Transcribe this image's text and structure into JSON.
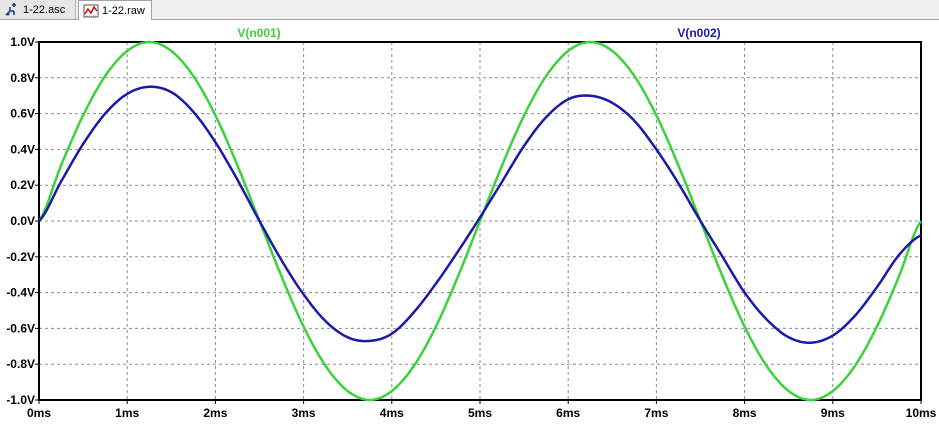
{
  "tabs": [
    {
      "label": "1-22.asc",
      "icon": "schematic-icon"
    },
    {
      "label": "1-22.raw",
      "icon": "waveform-icon"
    }
  ],
  "chart_data": {
    "type": "line",
    "xlim": [
      0,
      10
    ],
    "ylim": [
      -1.0,
      1.0
    ],
    "x_tick_labels": [
      "0ms",
      "1ms",
      "2ms",
      "3ms",
      "4ms",
      "5ms",
      "6ms",
      "7ms",
      "8ms",
      "9ms",
      "10ms"
    ],
    "y_tick_labels": [
      "1.0V",
      "0.8V",
      "0.6V",
      "0.4V",
      "0.2V",
      "0.0V",
      "-0.2V",
      "-0.4V",
      "-0.6V",
      "-0.8V",
      "-1.0V"
    ],
    "x_ticks": [
      0,
      1,
      2,
      3,
      4,
      5,
      6,
      7,
      8,
      9,
      10
    ],
    "y_ticks": [
      1.0,
      0.8,
      0.6,
      0.4,
      0.2,
      0.0,
      -0.2,
      -0.4,
      -0.6,
      -0.8,
      -1.0
    ],
    "grid": true,
    "series": [
      {
        "name": "V(n001)",
        "color": "#3cd23c",
        "x": [
          0,
          0.25,
          0.5,
          0.75,
          1.0,
          1.25,
          1.5,
          1.75,
          2.0,
          2.25,
          2.5,
          2.75,
          3.0,
          3.25,
          3.5,
          3.75,
          4.0,
          4.25,
          4.5,
          4.75,
          5.0,
          5.25,
          5.5,
          5.75,
          6.0,
          6.25,
          6.5,
          6.75,
          7.0,
          7.25,
          7.5,
          7.75,
          8.0,
          8.25,
          8.5,
          8.75,
          9.0,
          9.25,
          9.5,
          9.75,
          10.0
        ],
        "values": [
          0.0,
          0.31,
          0.59,
          0.81,
          0.95,
          1.0,
          0.95,
          0.81,
          0.59,
          0.31,
          0.0,
          -0.31,
          -0.59,
          -0.81,
          -0.95,
          -1.0,
          -0.95,
          -0.81,
          -0.59,
          -0.31,
          0.0,
          0.31,
          0.59,
          0.81,
          0.95,
          1.0,
          0.95,
          0.81,
          0.59,
          0.31,
          0.0,
          -0.31,
          -0.59,
          -0.81,
          -0.95,
          -1.0,
          -0.95,
          -0.81,
          -0.59,
          -0.31,
          0.0
        ]
      },
      {
        "name": "V(n002)",
        "color": "#1a1aa8",
        "x": [
          0,
          0.25,
          0.5,
          0.75,
          1.0,
          1.25,
          1.5,
          1.75,
          2.0,
          2.25,
          2.5,
          2.75,
          3.0,
          3.25,
          3.5,
          3.75,
          4.0,
          4.25,
          4.5,
          4.75,
          5.0,
          5.25,
          5.5,
          5.75,
          6.0,
          6.25,
          6.5,
          6.75,
          7.0,
          7.25,
          7.5,
          7.75,
          8.0,
          8.25,
          8.5,
          8.75,
          9.0,
          9.25,
          9.5,
          9.75,
          10.0
        ],
        "values": [
          0.0,
          0.22,
          0.43,
          0.6,
          0.71,
          0.75,
          0.72,
          0.61,
          0.44,
          0.23,
          0.0,
          -0.22,
          -0.41,
          -0.56,
          -0.65,
          -0.67,
          -0.63,
          -0.51,
          -0.35,
          -0.17,
          0.02,
          0.22,
          0.42,
          0.58,
          0.68,
          0.7,
          0.66,
          0.56,
          0.4,
          0.21,
          0.0,
          -0.2,
          -0.4,
          -0.55,
          -0.65,
          -0.68,
          -0.64,
          -0.53,
          -0.37,
          -0.19,
          -0.08
        ]
      }
    ]
  }
}
